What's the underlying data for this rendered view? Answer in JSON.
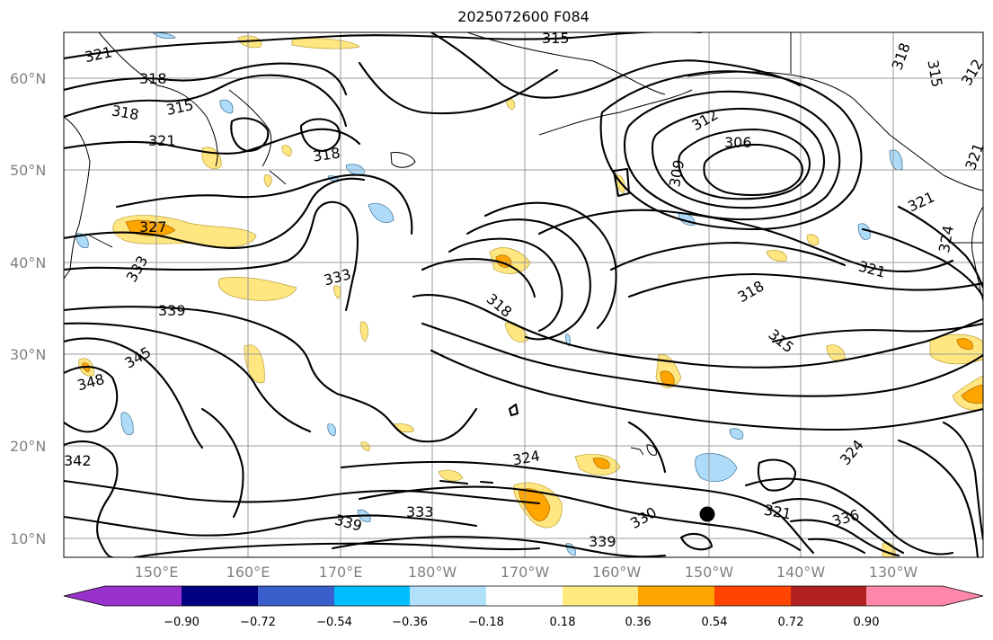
{
  "title": "2025072600 F084",
  "map": {
    "lat_labels": [
      "60°N",
      "50°N",
      "40°N",
      "30°N",
      "20°N",
      "10°N"
    ],
    "lon_labels": [
      "150°E",
      "160°E",
      "170°E",
      "180°W",
      "170°W",
      "160°W",
      "150°W",
      "140°W",
      "130°W"
    ],
    "contour_labels": [
      "321",
      "315",
      "318",
      "315",
      "318",
      "321",
      "318",
      "327",
      "333",
      "333",
      "339",
      "345",
      "348",
      "342",
      "312",
      "306",
      "309",
      "318",
      "315",
      "318",
      "321",
      "321",
      "324",
      "324",
      "333",
      "339",
      "330",
      "339",
      "321",
      "336",
      "324",
      "312",
      "315",
      "318",
      "321"
    ],
    "marker": "center-dot"
  },
  "colorbar": {
    "ticks": [
      "−0.90",
      "−0.72",
      "−0.54",
      "−0.36",
      "−0.18",
      "0.18",
      "0.36",
      "0.54",
      "0.72",
      "0.90"
    ],
    "colors": [
      "#9932cc",
      "#000080",
      "#3a5fcd",
      "#00bfff",
      "#b0e0fa",
      "#ffffff",
      "#ffea80",
      "#ffa500",
      "#ff4500",
      "#b22222",
      "#ff88aa"
    ]
  }
}
